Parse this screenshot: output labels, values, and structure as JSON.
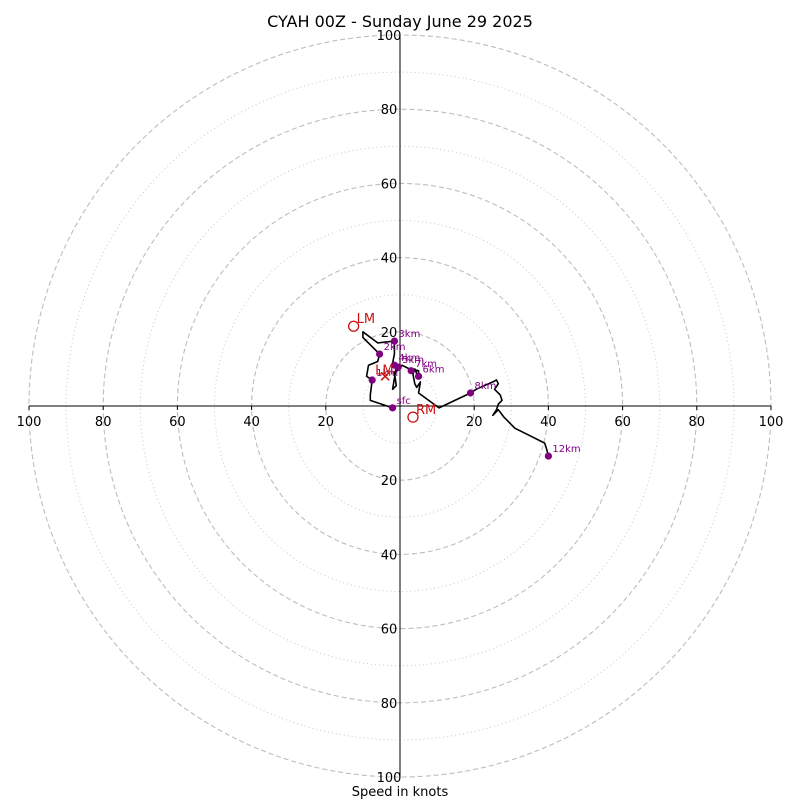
{
  "chart_data": {
    "type": "hodograph",
    "title": "CYAH 00Z - Sunday June 29 2025",
    "xlabel": "Speed in knots",
    "max_speed": 100,
    "ring_major": [
      20,
      40,
      60,
      80,
      100
    ],
    "ring_minor": [
      10,
      30,
      50,
      70,
      90
    ],
    "tick_values": [
      20,
      40,
      60,
      80,
      100
    ],
    "tick_labels": [
      "20",
      "40",
      "60",
      "80",
      "100"
    ],
    "trace_color": "#000000",
    "marker_color": "#800080",
    "motion_color": "#cc1111",
    "trace": [
      [
        -2,
        -0.5
      ],
      [
        -8,
        1.5
      ],
      [
        -8,
        3
      ],
      [
        -7.5,
        7
      ],
      [
        -9,
        8
      ],
      [
        -8.5,
        11
      ],
      [
        -6,
        12
      ],
      [
        -5.5,
        14
      ],
      [
        -8,
        16.5
      ],
      [
        -10,
        18.5
      ],
      [
        -10,
        20
      ],
      [
        -6,
        17
      ],
      [
        -1.5,
        17.5
      ],
      [
        -1.5,
        14
      ],
      [
        -2,
        11.5
      ],
      [
        -1,
        10.5
      ],
      [
        -2,
        4.5
      ],
      [
        -1,
        5.5
      ],
      [
        -1.5,
        9
      ],
      [
        0,
        10
      ],
      [
        0.5,
        11
      ],
      [
        2.5,
        10
      ],
      [
        3,
        10
      ],
      [
        5,
        9.5
      ],
      [
        5,
        7.5
      ],
      [
        4,
        10
      ],
      [
        3.5,
        8.5
      ],
      [
        4,
        6
      ],
      [
        4.5,
        5
      ],
      [
        5.5,
        6.5
      ],
      [
        5,
        3.5
      ],
      [
        10.5,
        -0.5
      ],
      [
        19,
        3.5
      ],
      [
        20.5,
        4.5
      ],
      [
        25,
        6.5
      ],
      [
        26,
        7
      ],
      [
        26.5,
        6
      ],
      [
        25.5,
        4.5
      ],
      [
        27,
        3
      ],
      [
        27.5,
        1.5
      ],
      [
        26.5,
        0.5
      ],
      [
        26,
        -1
      ],
      [
        25,
        -2.5
      ],
      [
        26.5,
        -1
      ],
      [
        28,
        -3
      ],
      [
        29,
        -4
      ],
      [
        31,
        -6
      ],
      [
        35,
        -8
      ],
      [
        39,
        -10
      ],
      [
        39.5,
        -11.5
      ],
      [
        40,
        -13.5
      ]
    ],
    "height_markers": [
      {
        "label": "sfc",
        "u": -2,
        "v": -0.5
      },
      {
        "label": "1km",
        "u": -7.5,
        "v": 7
      },
      {
        "label": "2km",
        "u": -5.5,
        "v": 14
      },
      {
        "label": "3km",
        "u": -1.5,
        "v": 17.5
      },
      {
        "label": "4km",
        "u": -1.5,
        "v": 11
      },
      {
        "label": "5km",
        "u": -0.5,
        "v": 10.5
      },
      {
        "label": "6km",
        "u": 5,
        "v": 8
      },
      {
        "label": "7km",
        "u": 3,
        "v": 9.5
      },
      {
        "label": "8km",
        "u": 19,
        "v": 3.5
      },
      {
        "label": "12km",
        "u": 40,
        "v": -13.5
      }
    ],
    "storm_motion": [
      {
        "label": "LM",
        "u": -12.5,
        "v": 21.5
      },
      {
        "label": "RM",
        "u": 3.5,
        "v": -3
      }
    ],
    "mean_wind": {
      "label": "LM",
      "u": -4,
      "v": 8
    }
  }
}
